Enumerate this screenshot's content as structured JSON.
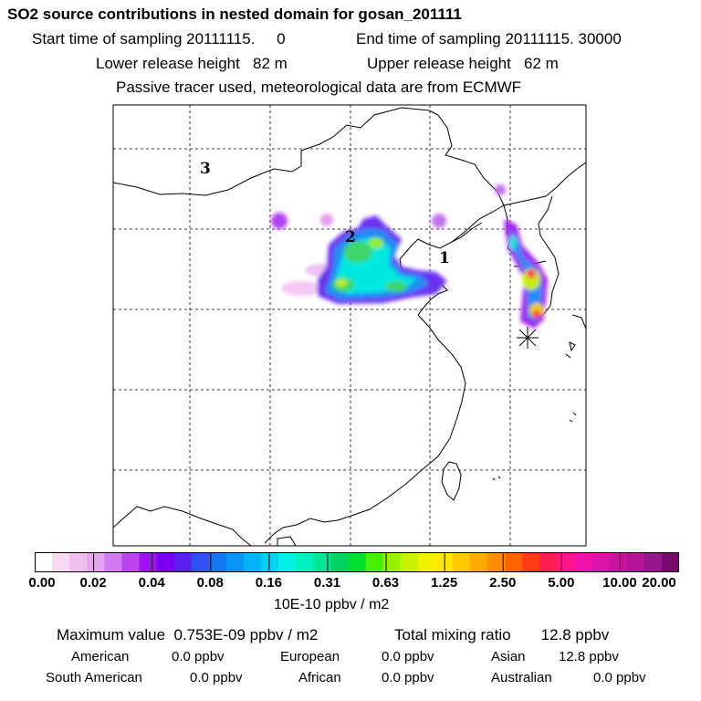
{
  "header": {
    "title": "SO2 source contributions in nested domain for gosan_201111",
    "start_label": "Start time of sampling 20111115.",
    "start_value": "0",
    "end_label": "End time of sampling 20111115. 30000",
    "lower_label": "Lower release height",
    "lower_value": "82 m",
    "upper_label": "Upper release height",
    "upper_value": "62 m",
    "note": "Passive tracer used, meteorological data are from ECMWF"
  },
  "map": {
    "region_labels": [
      "1",
      "2",
      "3"
    ],
    "marker": "receptor-star"
  },
  "colorbar": {
    "tick_labels": [
      "0.00",
      "0.02",
      "0.04",
      "0.08",
      "0.16",
      "0.31",
      "0.63",
      "1.25",
      "2.50",
      "5.00",
      "10.00",
      "20.00"
    ],
    "unit": "10E-10 ppbv / m2",
    "colors": [
      "#ffffff",
      "#f5d9f5",
      "#eebeee",
      "#e6a4f0",
      "#d27af0",
      "#bb44f0",
      "#a010f0",
      "#7a00f0",
      "#5a20f0",
      "#3050f5",
      "#1478f5",
      "#0a96f5",
      "#00b4f5",
      "#00d2f0",
      "#00f0e6",
      "#00f0be",
      "#00e696",
      "#00d264",
      "#00e032",
      "#46f000",
      "#96f000",
      "#c8f000",
      "#f0f000",
      "#ffe600",
      "#ffc800",
      "#ffaa00",
      "#ff8c00",
      "#ff6400",
      "#ff3c14",
      "#ff1e50",
      "#ff148c",
      "#f014aa",
      "#dc14aa",
      "#c814a0",
      "#b41496",
      "#96148c",
      "#780a6e"
    ]
  },
  "stats": {
    "max_label": "Maximum value",
    "max_value": "0.753E-09 ppbv / m2",
    "total_label": "Total mixing ratio",
    "total_value": "12.8 ppbv",
    "regions": [
      {
        "name": "American",
        "value": "0.0 ppbv"
      },
      {
        "name": "European",
        "value": "0.0 ppbv"
      },
      {
        "name": "Asian",
        "value": "12.8 ppbv"
      },
      {
        "name": "South American",
        "value": "0.0 ppbv"
      },
      {
        "name": "African",
        "value": "0.0 ppbv"
      },
      {
        "name": "Australian",
        "value": "0.0 ppbv"
      }
    ]
  }
}
